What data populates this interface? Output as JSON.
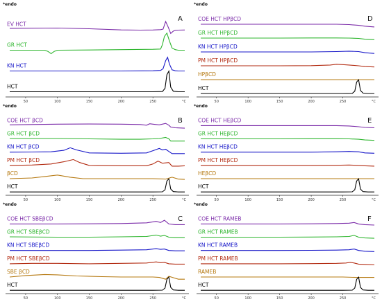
{
  "chart_data": [
    {
      "type": "line",
      "panel": "A",
      "endo_label": "*endo",
      "unit": "°C",
      "x_ticks": [
        50,
        100,
        150,
        200,
        250
      ],
      "xlim": [
        25,
        300
      ],
      "series": [
        {
          "name": "EV HCT",
          "color": "#7a2aa8",
          "x": [
            25,
            100,
            150,
            200,
            230,
            250,
            262,
            266,
            270,
            274,
            278,
            282,
            285,
            290,
            300
          ],
          "y": [
            0.1,
            0.12,
            0.06,
            -0.04,
            -0.06,
            -0.05,
            -0.02,
            0.03,
            0.7,
            0.2,
            -0.35,
            -0.15,
            -0.08,
            -0.06,
            -0.05
          ]
        },
        {
          "name": "GR HCT",
          "color": "#2db52d",
          "x": [
            25,
            80,
            85,
            90,
            95,
            100,
            150,
            200,
            250,
            262,
            265,
            268,
            272,
            276,
            280,
            285,
            290,
            300
          ],
          "y": [
            0.0,
            0.0,
            -0.1,
            -0.3,
            -0.1,
            0.0,
            0.02,
            0.05,
            0.08,
            0.1,
            0.5,
            1.2,
            1.5,
            0.8,
            0.2,
            0.05,
            0.0,
            0.0
          ]
        },
        {
          "name": "KN HCT",
          "color": "#1515c8",
          "x": [
            25,
            100,
            150,
            200,
            250,
            262,
            266,
            270,
            273,
            276,
            280,
            285,
            290,
            300
          ],
          "y": [
            0.0,
            0.0,
            0.0,
            0.0,
            0.02,
            0.05,
            0.2,
            0.9,
            1.2,
            0.6,
            0.1,
            0.02,
            0.0,
            0.0
          ]
        },
        {
          "name": "HCT",
          "color": "#000000",
          "x": [
            25,
            100,
            150,
            200,
            250,
            265,
            269,
            272,
            275,
            278,
            282,
            290,
            300
          ],
          "y": [
            0.0,
            0.0,
            0.0,
            0.0,
            0.0,
            0.02,
            0.3,
            1.5,
            1.8,
            0.4,
            0.05,
            0.0,
            0.0
          ]
        }
      ]
    },
    {
      "type": "line",
      "panel": "B",
      "endo_label": "*endo",
      "unit": "°C",
      "x_ticks": [
        50,
        100,
        150,
        200,
        250
      ],
      "xlim": [
        25,
        300
      ],
      "series": [
        {
          "name": "COE HCT βCD",
          "color": "#7a2aa8",
          "x": [
            25,
            60,
            100,
            150,
            200,
            230,
            240,
            245,
            250,
            260,
            270,
            275,
            278,
            285,
            300
          ],
          "y": [
            0.1,
            0.15,
            0.2,
            0.22,
            0.2,
            0.15,
            0.05,
            0.25,
            0.2,
            0.1,
            0.3,
            0.05,
            -0.2,
            -0.3,
            -0.35
          ]
        },
        {
          "name": "GR HCT βCD",
          "color": "#2db52d",
          "x": [
            25,
            60,
            100,
            150,
            200,
            230,
            250,
            260,
            270,
            275,
            278,
            285,
            300
          ],
          "y": [
            0.05,
            0.05,
            0.05,
            0.0,
            -0.05,
            -0.05,
            0.0,
            0.05,
            0.2,
            0.0,
            -0.3,
            -0.3,
            -0.3
          ]
        },
        {
          "name": "KN HCT βCD",
          "color": "#1515c8",
          "x": [
            25,
            60,
            90,
            110,
            120,
            130,
            150,
            200,
            240,
            250,
            260,
            265,
            270,
            275,
            280,
            290,
            300
          ],
          "y": [
            0.0,
            0.02,
            0.05,
            0.25,
            0.6,
            0.3,
            -0.1,
            -0.15,
            -0.1,
            0.2,
            0.5,
            0.3,
            0.4,
            0.1,
            -0.2,
            -0.2,
            -0.2
          ]
        },
        {
          "name": "PM HCT βCD",
          "color": "#b22a10",
          "x": [
            25,
            60,
            90,
            110,
            125,
            135,
            150,
            200,
            240,
            250,
            258,
            265,
            275,
            280,
            290,
            300
          ],
          "y": [
            0.0,
            0.05,
            0.2,
            0.5,
            0.8,
            0.4,
            0.0,
            -0.05,
            -0.05,
            0.2,
            0.6,
            0.3,
            0.4,
            -0.1,
            -0.1,
            -0.05
          ]
        },
        {
          "name": "βCD",
          "color": "#b5780f",
          "x": [
            25,
            60,
            80,
            100,
            120,
            140,
            200,
            250,
            270,
            280,
            290,
            300
          ],
          "y": [
            0.0,
            0.1,
            0.3,
            0.5,
            0.2,
            0.0,
            0.0,
            0.0,
            -0.05,
            0.2,
            -0.05,
            -0.1
          ]
        },
        {
          "name": "HCT",
          "color": "#000000",
          "x": [
            25,
            100,
            150,
            200,
            250,
            265,
            269,
            272,
            275,
            278,
            282,
            290,
            300
          ],
          "y": [
            0.0,
            0.0,
            0.0,
            0.0,
            0.0,
            0.02,
            0.3,
            1.5,
            1.8,
            0.4,
            0.05,
            0.0,
            0.0
          ]
        }
      ]
    },
    {
      "type": "line",
      "panel": "C",
      "endo_label": "*endo",
      "unit": "°C",
      "x_ticks": [
        50,
        100,
        150,
        200,
        250
      ],
      "xlim": [
        25,
        300
      ],
      "series": [
        {
          "name": "COE HCT SBEβCD",
          "color": "#7a2aa8",
          "x": [
            25,
            100,
            150,
            200,
            240,
            255,
            262,
            268,
            275,
            285,
            300
          ],
          "y": [
            0.0,
            0.0,
            0.02,
            0.05,
            0.15,
            0.35,
            0.2,
            0.5,
            0.0,
            -0.1,
            -0.1
          ]
        },
        {
          "name": "GR HCT SBEβCD",
          "color": "#2db52d",
          "x": [
            25,
            100,
            150,
            200,
            240,
            255,
            262,
            268,
            275,
            285,
            300
          ],
          "y": [
            0.05,
            0.0,
            0.0,
            0.05,
            0.1,
            0.3,
            0.15,
            0.25,
            0.0,
            -0.05,
            -0.05
          ]
        },
        {
          "name": "KN HCT SBEβCD",
          "color": "#1515c8",
          "x": [
            25,
            100,
            150,
            200,
            240,
            255,
            262,
            268,
            275,
            285,
            300
          ],
          "y": [
            0.0,
            0.0,
            0.0,
            0.05,
            0.1,
            0.25,
            0.15,
            0.2,
            0.0,
            -0.05,
            -0.05
          ]
        },
        {
          "name": "PM HCT SBEβCD",
          "color": "#b22a10",
          "x": [
            25,
            60,
            100,
            150,
            200,
            240,
            255,
            262,
            268,
            275,
            285,
            300
          ],
          "y": [
            0.0,
            0.05,
            0.05,
            0.0,
            0.05,
            0.1,
            0.25,
            0.15,
            0.2,
            0.0,
            -0.05,
            -0.05
          ]
        },
        {
          "name": "SBE βCD",
          "color": "#b5780f",
          "x": [
            25,
            50,
            80,
            100,
            130,
            170,
            200,
            250,
            260,
            270,
            275,
            290,
            300
          ],
          "y": [
            0.0,
            0.2,
            0.35,
            0.3,
            0.15,
            0.05,
            0.0,
            0.0,
            -0.05,
            -0.3,
            0.1,
            -0.3,
            -0.3
          ]
        },
        {
          "name": "HCT",
          "color": "#000000",
          "x": [
            25,
            100,
            150,
            200,
            250,
            265,
            269,
            272,
            275,
            278,
            282,
            290,
            300
          ],
          "y": [
            0.0,
            0.0,
            0.0,
            0.0,
            0.0,
            0.02,
            0.3,
            1.5,
            1.8,
            0.4,
            0.05,
            0.0,
            0.0
          ]
        }
      ]
    },
    {
      "type": "line",
      "panel": "D",
      "endo_label": "*endo",
      "unit": "°C",
      "x_ticks": [
        50,
        100,
        150,
        200,
        250
      ],
      "xlim": [
        25,
        300
      ],
      "series": [
        {
          "name": "COE HCT HPβCD",
          "color": "#7a2aa8",
          "x": [
            25,
            100,
            150,
            200,
            240,
            260,
            275,
            285,
            300
          ],
          "y": [
            0.0,
            0.0,
            0.0,
            0.0,
            0.0,
            -0.05,
            -0.15,
            -0.25,
            -0.35
          ]
        },
        {
          "name": "GR HCT HPβCD",
          "color": "#2db52d",
          "x": [
            25,
            100,
            150,
            200,
            240,
            260,
            275,
            285,
            300
          ],
          "y": [
            0.0,
            0.0,
            0.0,
            0.02,
            0.02,
            0.0,
            -0.05,
            -0.15,
            -0.2
          ]
        },
        {
          "name": "KN HCT HPβCD",
          "color": "#1515c8",
          "x": [
            25,
            100,
            150,
            200,
            240,
            260,
            275,
            285,
            300
          ],
          "y": [
            0.0,
            0.0,
            0.0,
            0.0,
            0.05,
            0.1,
            0.05,
            -0.1,
            -0.2
          ]
        },
        {
          "name": "PM HCT HPβCD",
          "color": "#b22a10",
          "x": [
            25,
            100,
            150,
            200,
            230,
            240,
            250,
            260,
            275,
            285,
            300
          ],
          "y": [
            0.0,
            0.0,
            0.0,
            0.02,
            0.1,
            0.2,
            0.15,
            0.1,
            0.0,
            -0.1,
            -0.15
          ]
        },
        {
          "name": "HPβCD",
          "color": "#b5780f",
          "x": [
            25,
            100,
            150,
            200,
            250,
            300
          ],
          "y": [
            0.0,
            0.0,
            0.0,
            0.0,
            0.0,
            0.0
          ]
        },
        {
          "name": "HCT",
          "color": "#000000",
          "x": [
            25,
            100,
            150,
            200,
            250,
            265,
            269,
            272,
            275,
            278,
            282,
            290,
            300
          ],
          "y": [
            0.0,
            0.0,
            0.0,
            0.0,
            0.0,
            0.02,
            0.3,
            1.5,
            1.8,
            0.4,
            0.05,
            0.0,
            0.0
          ]
        }
      ]
    },
    {
      "type": "line",
      "panel": "E",
      "endo_label": "*endo",
      "unit": "°C",
      "x_ticks": [
        50,
        100,
        150,
        200,
        250
      ],
      "xlim": [
        25,
        300
      ],
      "series": [
        {
          "name": "COE HCT HEβCD",
          "color": "#7a2aa8",
          "x": [
            25,
            100,
            150,
            200,
            240,
            260,
            275,
            285,
            300
          ],
          "y": [
            0.0,
            0.0,
            0.0,
            0.0,
            0.0,
            -0.05,
            -0.15,
            -0.25,
            -0.3
          ]
        },
        {
          "name": "GR HCT HEβCD",
          "color": "#2db52d",
          "x": [
            25,
            100,
            150,
            200,
            240,
            260,
            275,
            285,
            300
          ],
          "y": [
            0.0,
            0.0,
            0.0,
            0.02,
            0.02,
            0.0,
            -0.05,
            -0.15,
            -0.2
          ]
        },
        {
          "name": "KN HCT HEβCD",
          "color": "#1515c8",
          "x": [
            25,
            100,
            150,
            200,
            240,
            260,
            275,
            285,
            300
          ],
          "y": [
            0.0,
            0.0,
            0.0,
            0.0,
            0.05,
            0.1,
            0.05,
            -0.1,
            -0.15
          ]
        },
        {
          "name": "PM HCT HEβCD",
          "color": "#b22a10",
          "x": [
            25,
            100,
            150,
            200,
            240,
            260,
            275,
            285,
            300
          ],
          "y": [
            0.0,
            0.0,
            0.0,
            0.0,
            0.02,
            0.05,
            0.0,
            -0.05,
            -0.1
          ]
        },
        {
          "name": "HEβCD",
          "color": "#b5780f",
          "x": [
            25,
            100,
            150,
            200,
            250,
            300
          ],
          "y": [
            0.0,
            0.0,
            0.0,
            0.0,
            0.0,
            0.0
          ]
        },
        {
          "name": "HCT",
          "color": "#000000",
          "x": [
            25,
            100,
            150,
            200,
            250,
            265,
            269,
            272,
            275,
            278,
            282,
            290,
            300
          ],
          "y": [
            0.0,
            0.0,
            0.0,
            0.0,
            0.0,
            0.02,
            0.3,
            1.5,
            1.8,
            0.4,
            0.05,
            0.0,
            0.0
          ]
        }
      ]
    },
    {
      "type": "line",
      "panel": "F",
      "endo_label": "*endo",
      "unit": "°C",
      "x_ticks": [
        50,
        100,
        150,
        200,
        250
      ],
      "xlim": [
        25,
        300
      ],
      "series": [
        {
          "name": "COE HCT RAMEB",
          "color": "#7a2aa8",
          "x": [
            25,
            100,
            150,
            200,
            240,
            260,
            268,
            275,
            285,
            300
          ],
          "y": [
            0.0,
            0.0,
            0.0,
            0.02,
            0.05,
            0.1,
            0.2,
            0.0,
            -0.1,
            -0.15
          ]
        },
        {
          "name": "GR HCT RAMEB",
          "color": "#2db52d",
          "x": [
            25,
            100,
            150,
            200,
            240,
            260,
            268,
            275,
            285,
            300
          ],
          "y": [
            0.0,
            0.0,
            0.0,
            0.02,
            0.05,
            0.1,
            0.25,
            0.0,
            -0.1,
            -0.15
          ]
        },
        {
          "name": "KN HCT RAMEB",
          "color": "#1515c8",
          "x": [
            25,
            100,
            150,
            200,
            240,
            260,
            268,
            275,
            285,
            300
          ],
          "y": [
            0.0,
            0.0,
            0.0,
            0.02,
            0.05,
            0.1,
            0.2,
            0.0,
            -0.1,
            -0.15
          ]
        },
        {
          "name": "PM HCT RAMEB",
          "color": "#b22a10",
          "x": [
            25,
            100,
            150,
            200,
            240,
            255,
            262,
            268,
            275,
            285,
            300
          ],
          "y": [
            0.0,
            0.0,
            0.0,
            0.02,
            0.05,
            0.1,
            0.2,
            0.1,
            -0.05,
            -0.1,
            -0.15
          ]
        },
        {
          "name": "RAMEB",
          "color": "#b5780f",
          "x": [
            25,
            100,
            150,
            200,
            250,
            270,
            285,
            300
          ],
          "y": [
            0.0,
            0.0,
            0.0,
            0.0,
            0.0,
            -0.05,
            -0.05,
            -0.05
          ]
        },
        {
          "name": "HCT",
          "color": "#000000",
          "x": [
            25,
            100,
            150,
            200,
            250,
            265,
            269,
            272,
            275,
            278,
            282,
            290,
            300
          ],
          "y": [
            0.0,
            0.0,
            0.0,
            0.0,
            0.0,
            0.02,
            0.3,
            1.5,
            1.8,
            0.4,
            0.05,
            0.0,
            0.0
          ]
        }
      ]
    }
  ]
}
